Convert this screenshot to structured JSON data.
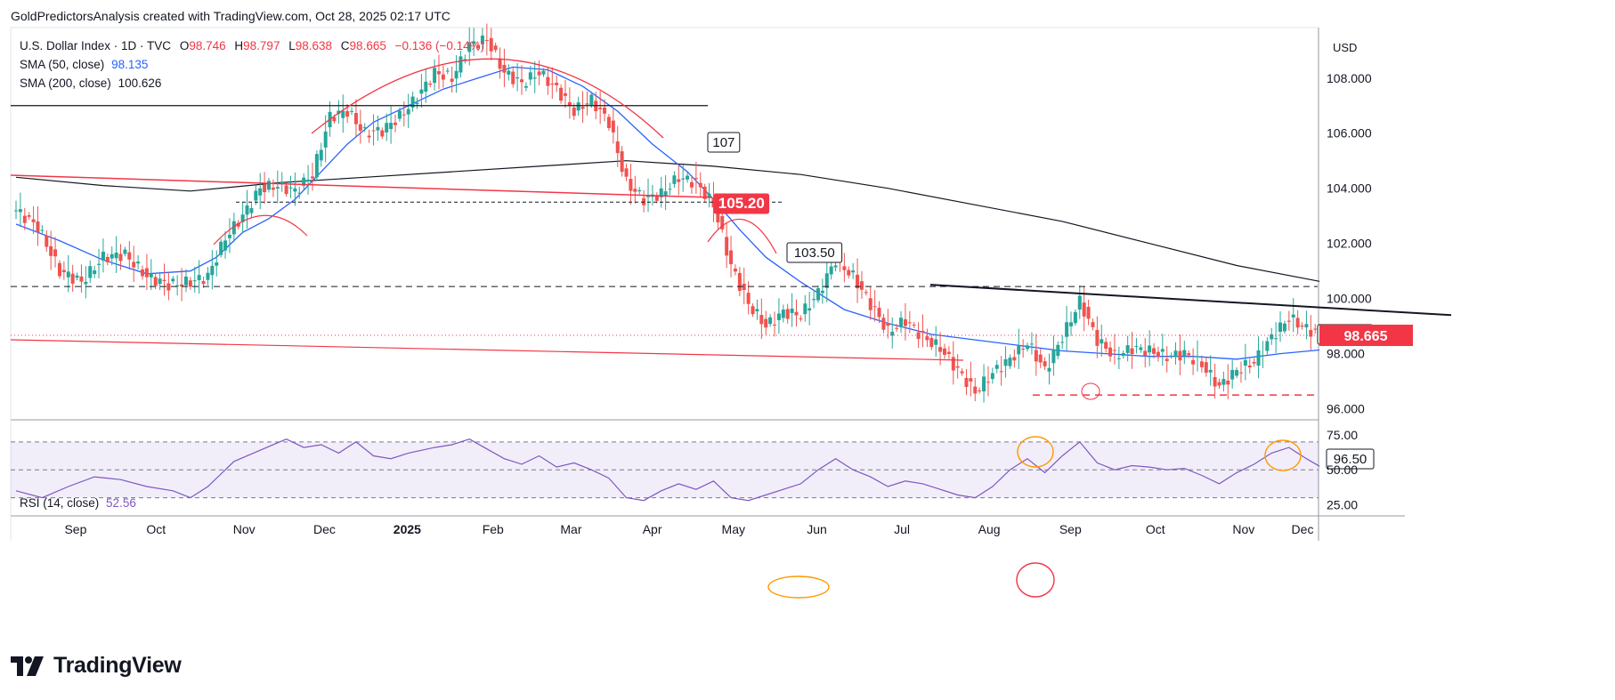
{
  "header": {
    "caption": "GoldPredictorsAnalysis created with TradingView.com, Oct 28, 2025 02:17 UTC"
  },
  "legend": {
    "symbol": "U.S. Dollar Index · 1D · TVC",
    "o_label": "O",
    "o": "98.746",
    "h_label": "H",
    "h": "98.797",
    "l_label": "L",
    "l": "98.638",
    "c_label": "C",
    "c": "98.665",
    "change": "−0.136 (−0.14%)",
    "sma50_label": "SMA (50, close)",
    "sma50": "98.135",
    "sma200_label": "SMA (200, close)",
    "sma200": "100.626",
    "rsi_label": "RSI (14, close)",
    "rsi": "52.56"
  },
  "price_scale": {
    "currency": "USD",
    "last_price": "98.665"
  },
  "brand": {
    "name": "TradingView"
  },
  "colors": {
    "up": "#26a69a",
    "down": "#ef5350",
    "sma50": "#2962ff",
    "sma200": "#131722",
    "rsi": "#7e57c2",
    "last_price": "#f23645"
  },
  "chart_data": {
    "type": "candlestick",
    "interval": "1D",
    "price_axis": {
      "ticks": [
        "96.000",
        "98.000",
        "100.000",
        "102.000",
        "104.000",
        "106.000",
        "108.000"
      ],
      "range": [
        95.6,
        109.8
      ]
    },
    "rsi_axis": {
      "ticks": [
        "25.00",
        "50.00",
        "75.00"
      ],
      "range": [
        17,
        82
      ]
    },
    "time_axis": [
      "Sep",
      "Oct",
      "Nov",
      "Dec",
      "2025",
      "Feb",
      "Mar",
      "Apr",
      "May",
      "Jun",
      "Jul",
      "Aug",
      "Sep",
      "Oct",
      "Nov",
      "Dec"
    ],
    "price_path": [
      [
        0,
        103.2
      ],
      [
        5,
        102.6
      ],
      [
        10,
        101.0
      ],
      [
        15,
        100.6
      ],
      [
        20,
        101.5
      ],
      [
        25,
        101.6
      ],
      [
        30,
        100.8
      ],
      [
        35,
        100.5
      ],
      [
        40,
        100.6
      ],
      [
        44,
        100.8
      ],
      [
        48,
        102.2
      ],
      [
        52,
        103.0
      ],
      [
        56,
        104.0
      ],
      [
        60,
        104.1
      ],
      [
        64,
        103.9
      ],
      [
        68,
        104.5
      ],
      [
        72,
        106.6
      ],
      [
        76,
        106.8
      ],
      [
        80,
        106.0
      ],
      [
        84,
        106.1
      ],
      [
        88,
        106.6
      ],
      [
        92,
        107.3
      ],
      [
        96,
        108.2
      ],
      [
        100,
        108.0
      ],
      [
        104,
        109.2
      ],
      [
        108,
        109.4
      ],
      [
        112,
        108.2
      ],
      [
        116,
        107.8
      ],
      [
        120,
        108.2
      ],
      [
        124,
        107.6
      ],
      [
        128,
        106.8
      ],
      [
        132,
        107.2
      ],
      [
        136,
        106.4
      ],
      [
        140,
        104.2
      ],
      [
        144,
        103.6
      ],
      [
        148,
        103.8
      ],
      [
        152,
        104.4
      ],
      [
        156,
        104.2
      ],
      [
        160,
        103.4
      ],
      [
        164,
        101.2
      ],
      [
        168,
        99.8
      ],
      [
        172,
        99.0
      ],
      [
        176,
        99.5
      ],
      [
        180,
        99.4
      ],
      [
        184,
        100.2
      ],
      [
        188,
        101.4
      ],
      [
        192,
        100.8
      ],
      [
        196,
        99.8
      ],
      [
        200,
        98.8
      ],
      [
        204,
        99.2
      ],
      [
        208,
        98.6
      ],
      [
        212,
        98.2
      ],
      [
        216,
        97.4
      ],
      [
        220,
        96.6
      ],
      [
        224,
        97.3
      ],
      [
        228,
        97.8
      ],
      [
        232,
        98.4
      ],
      [
        236,
        97.4
      ],
      [
        240,
        98.6
      ],
      [
        244,
        99.9
      ],
      [
        248,
        98.5
      ],
      [
        252,
        97.9
      ],
      [
        256,
        98.2
      ],
      [
        260,
        98.1
      ],
      [
        264,
        97.9
      ],
      [
        268,
        98.0
      ],
      [
        272,
        97.6
      ],
      [
        276,
        96.8
      ],
      [
        280,
        97.4
      ],
      [
        284,
        97.7
      ],
      [
        288,
        98.6
      ],
      [
        292,
        99.3
      ],
      [
        296,
        98.9
      ],
      [
        299,
        98.7
      ]
    ],
    "sma50_path": [
      [
        0,
        102.7
      ],
      [
        10,
        102.1
      ],
      [
        20,
        101.4
      ],
      [
        30,
        100.9
      ],
      [
        40,
        101.0
      ],
      [
        46,
        101.5
      ],
      [
        52,
        102.4
      ],
      [
        58,
        102.9
      ],
      [
        64,
        103.6
      ],
      [
        70,
        104.6
      ],
      [
        76,
        105.6
      ],
      [
        82,
        106.4
      ],
      [
        90,
        107.0
      ],
      [
        98,
        107.6
      ],
      [
        106,
        108.0
      ],
      [
        114,
        108.4
      ],
      [
        122,
        108.3
      ],
      [
        130,
        107.7
      ],
      [
        138,
        106.8
      ],
      [
        146,
        105.6
      ],
      [
        154,
        104.6
      ],
      [
        160,
        103.6
      ],
      [
        166,
        102.5
      ],
      [
        172,
        101.5
      ],
      [
        180,
        100.6
      ],
      [
        190,
        99.6
      ],
      [
        200,
        99.1
      ],
      [
        210,
        98.7
      ],
      [
        220,
        98.5
      ],
      [
        230,
        98.3
      ],
      [
        240,
        98.1
      ],
      [
        250,
        98.0
      ],
      [
        260,
        97.9
      ],
      [
        270,
        97.9
      ],
      [
        280,
        97.8
      ],
      [
        290,
        98.0
      ],
      [
        299,
        98.135
      ]
    ],
    "sma200_path": [
      [
        0,
        104.4
      ],
      [
        20,
        104.1
      ],
      [
        40,
        103.9
      ],
      [
        60,
        104.2
      ],
      [
        80,
        104.4
      ],
      [
        100,
        104.6
      ],
      [
        120,
        104.8
      ],
      [
        140,
        105.0
      ],
      [
        160,
        104.8
      ],
      [
        180,
        104.5
      ],
      [
        200,
        104.0
      ],
      [
        220,
        103.4
      ],
      [
        240,
        102.8
      ],
      [
        260,
        102.0
      ],
      [
        280,
        101.2
      ],
      [
        299,
        100.626
      ]
    ],
    "rsi_path": [
      [
        0,
        35
      ],
      [
        6,
        30
      ],
      [
        12,
        38
      ],
      [
        18,
        45
      ],
      [
        24,
        43
      ],
      [
        30,
        38
      ],
      [
        36,
        35
      ],
      [
        40,
        30
      ],
      [
        44,
        38
      ],
      [
        50,
        56
      ],
      [
        56,
        64
      ],
      [
        62,
        72
      ],
      [
        66,
        66
      ],
      [
        70,
        68
      ],
      [
        74,
        62
      ],
      [
        78,
        70
      ],
      [
        82,
        60
      ],
      [
        86,
        58
      ],
      [
        90,
        62
      ],
      [
        96,
        66
      ],
      [
        100,
        68
      ],
      [
        104,
        72
      ],
      [
        108,
        65
      ],
      [
        112,
        58
      ],
      [
        116,
        54
      ],
      [
        120,
        60
      ],
      [
        124,
        52
      ],
      [
        128,
        55
      ],
      [
        132,
        50
      ],
      [
        136,
        44
      ],
      [
        140,
        30
      ],
      [
        144,
        28
      ],
      [
        148,
        35
      ],
      [
        152,
        40
      ],
      [
        156,
        36
      ],
      [
        160,
        42
      ],
      [
        164,
        30
      ],
      [
        168,
        28
      ],
      [
        172,
        32
      ],
      [
        176,
        36
      ],
      [
        180,
        40
      ],
      [
        184,
        50
      ],
      [
        188,
        58
      ],
      [
        192,
        50
      ],
      [
        196,
        45
      ],
      [
        200,
        38
      ],
      [
        204,
        42
      ],
      [
        208,
        40
      ],
      [
        212,
        36
      ],
      [
        216,
        32
      ],
      [
        220,
        30
      ],
      [
        224,
        38
      ],
      [
        228,
        50
      ],
      [
        232,
        58
      ],
      [
        236,
        48
      ],
      [
        240,
        60
      ],
      [
        244,
        70
      ],
      [
        248,
        55
      ],
      [
        252,
        50
      ],
      [
        256,
        53
      ],
      [
        260,
        52
      ],
      [
        264,
        50
      ],
      [
        268,
        51
      ],
      [
        272,
        46
      ],
      [
        276,
        40
      ],
      [
        280,
        48
      ],
      [
        284,
        54
      ],
      [
        288,
        62
      ],
      [
        292,
        66
      ],
      [
        296,
        58
      ],
      [
        299,
        52.56
      ]
    ],
    "rsi_bands": [
      30,
      50,
      70
    ],
    "annotations": {
      "resistance_107": "107",
      "level_105": "105.20",
      "level_103": "103.50",
      "level_100": "100.50",
      "support_96": "96.50"
    }
  }
}
